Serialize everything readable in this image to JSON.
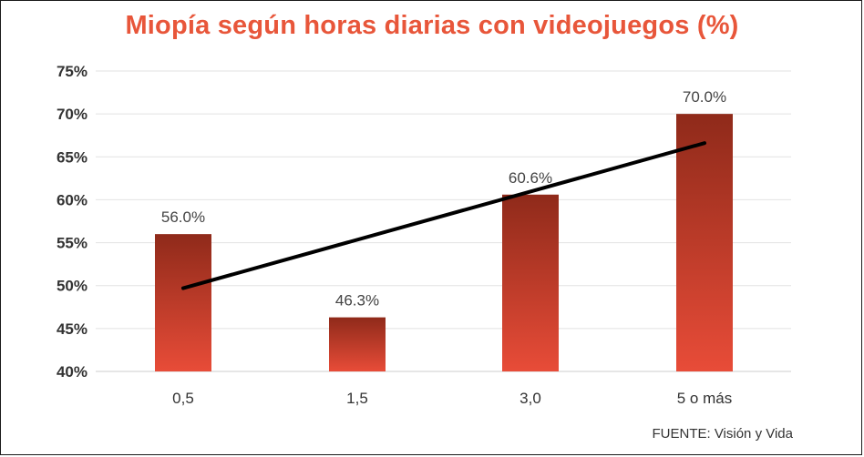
{
  "chart_data": {
    "type": "bar",
    "title": "Miopía según horas diarias con videojuegos (%)",
    "categories": [
      "0,5",
      "1,5",
      "3,0",
      "5 o más"
    ],
    "values": [
      56.0,
      46.3,
      60.6,
      70.0
    ],
    "value_labels": [
      "56.0%",
      "46.3%",
      "60.6%",
      "70.0%"
    ],
    "trendline": {
      "start": 49.7,
      "end": 66.6
    },
    "ylim": [
      40,
      75
    ],
    "yticks": [
      40,
      45,
      50,
      55,
      60,
      65,
      70,
      75
    ],
    "ytick_labels": [
      "40%",
      "45%",
      "50%",
      "55%",
      "60%",
      "65%",
      "70%",
      "75%"
    ],
    "xlabel": "",
    "ylabel": "",
    "grid": true,
    "colors": {
      "bar_top": "#8f2a1a",
      "bar_bottom": "#e84c38",
      "trend": "#000000",
      "title": "#e8563a"
    }
  },
  "source": "FUENTE: Visión y Vida"
}
